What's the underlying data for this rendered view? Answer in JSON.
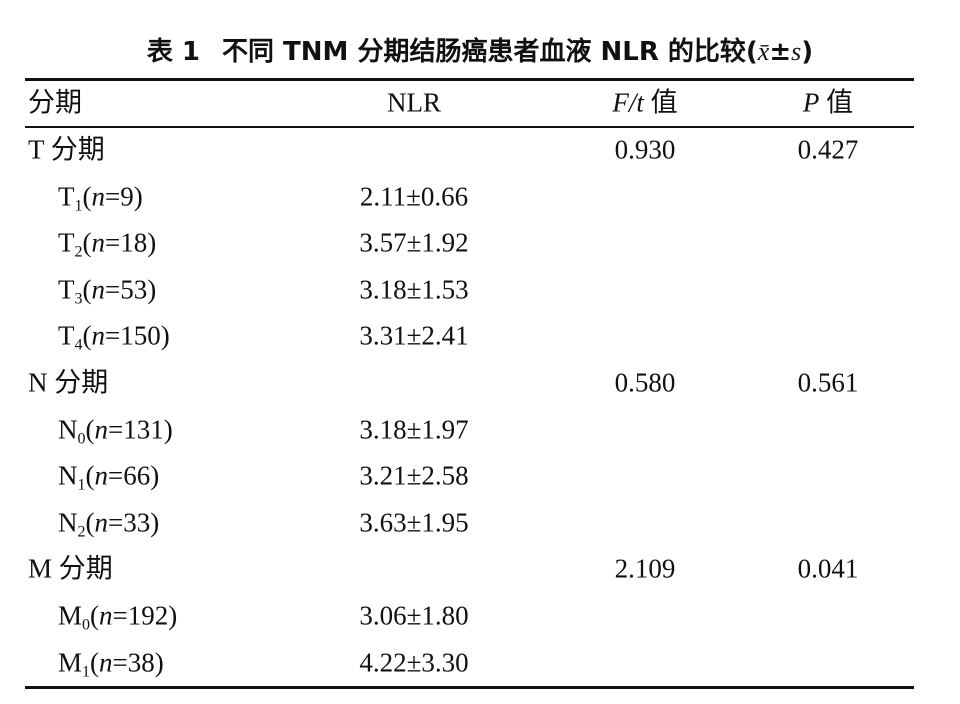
{
  "title": [
    "表 1",
    "不同 TNM 分期结肠癌患者血液 NLR 的比较(",
    "x̄",
    "±",
    "s",
    ")"
  ],
  "table": {
    "header": [
      [
        "分期"
      ],
      [
        "NLR"
      ],
      [
        "F/t",
        " 值"
      ],
      [
        "P",
        " 值"
      ]
    ],
    "groups": [
      {
        "label": "T 分期",
        "f_t": "0.930",
        "p": "0.427",
        "items": [
          {
            "label": [
              "T",
              "1",
              "(",
              "n",
              "=9)"
            ],
            "nlr": "2.11±0.66"
          },
          {
            "label": [
              "T",
              "2",
              "(",
              "n",
              "=18)"
            ],
            "nlr": "3.57±1.92"
          },
          {
            "label": [
              "T",
              "3",
              "(",
              "n",
              "=53)"
            ],
            "nlr": "3.18±1.53"
          },
          {
            "label": [
              "T",
              "4",
              "(",
              "n",
              "=150)"
            ],
            "nlr": "3.31±2.41"
          }
        ]
      },
      {
        "label": "N 分期",
        "f_t": "0.580",
        "p": "0.561",
        "items": [
          {
            "label": [
              "N",
              "0",
              "(",
              "n",
              "=131)"
            ],
            "nlr": "3.18±1.97"
          },
          {
            "label": [
              "N",
              "1",
              "(",
              "n",
              "=66)"
            ],
            "nlr": "3.21±2.58"
          },
          {
            "label": [
              "N",
              "2",
              "(",
              "n",
              "=33)"
            ],
            "nlr": "3.63±1.95"
          }
        ]
      },
      {
        "label": "M 分期",
        "f_t": "2.109",
        "p": "0.041",
        "items": [
          {
            "label": [
              "M",
              "0",
              "(",
              "n",
              "=192)"
            ],
            "nlr": "3.06±1.80"
          },
          {
            "label": [
              "M",
              "1",
              "(",
              "n",
              "=38)"
            ],
            "nlr": "4.22±3.30"
          }
        ]
      }
    ]
  }
}
